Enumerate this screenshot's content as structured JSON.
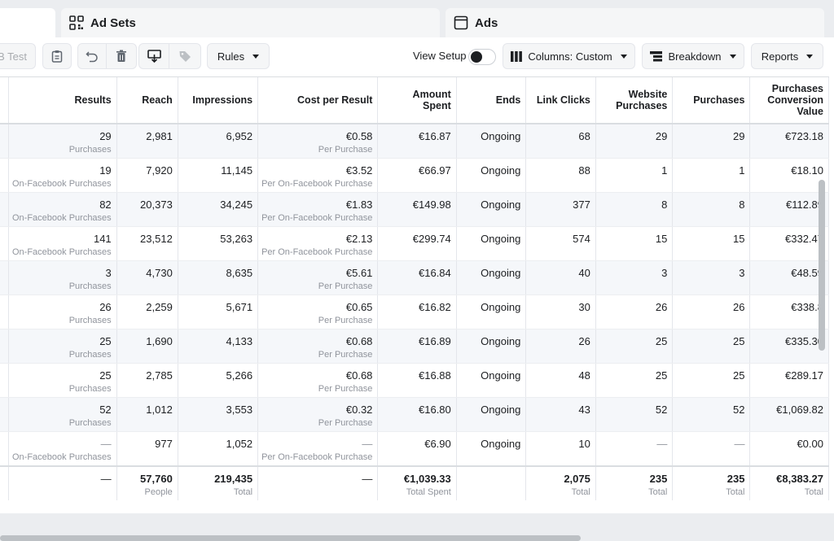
{
  "tabs": [
    {
      "label": "",
      "icon": "campaigns-tab",
      "active": true
    },
    {
      "label": "Ad Sets",
      "icon": "grid-icon",
      "active": false
    },
    {
      "label": "Ads",
      "icon": "window-icon",
      "active": false
    }
  ],
  "toolbar": {
    "ab_test_label": "B Test",
    "rules_label": "Rules",
    "view_setup_label": "View Setup",
    "columns_label": "Columns: Custom",
    "breakdown_label": "Breakdown",
    "reports_label": "Reports"
  },
  "table": {
    "headers": [
      "",
      "Results",
      "Reach",
      "Impressions",
      "Cost per Result",
      "Amount Spent",
      "Ends",
      "Link Clicks",
      "Website Purchases",
      "Purchases",
      "Purchases Conversion Value"
    ],
    "rows": [
      {
        "results": "29",
        "results_sub": "Purchases",
        "reach": "2,981",
        "impressions": "6,952",
        "cpr": "€0.58",
        "cpr_sub": "Per Purchase",
        "spent": "€16.87",
        "ends": "Ongoing",
        "clicks": "68",
        "web_purchases": "29",
        "purchases": "29",
        "conv_value": "€723.18"
      },
      {
        "results": "19",
        "results_sub": "On-Facebook Purchases",
        "reach": "7,920",
        "impressions": "11,145",
        "cpr": "€3.52",
        "cpr_sub": "Per On-Facebook Purchase",
        "spent": "€66.97",
        "ends": "Ongoing",
        "clicks": "88",
        "web_purchases": "1",
        "purchases": "1",
        "conv_value": "€18.10"
      },
      {
        "results": "82",
        "results_sub": "On-Facebook Purchases",
        "reach": "20,373",
        "impressions": "34,245",
        "cpr": "€1.83",
        "cpr_sub": "Per On-Facebook Purchase",
        "spent": "€149.98",
        "ends": "Ongoing",
        "clicks": "377",
        "web_purchases": "8",
        "purchases": "8",
        "conv_value": "€112.89"
      },
      {
        "results": "141",
        "results_sub": "On-Facebook Purchases",
        "reach": "23,512",
        "impressions": "53,263",
        "cpr": "€2.13",
        "cpr_sub": "Per On-Facebook Purchase",
        "spent": "€299.74",
        "ends": "Ongoing",
        "clicks": "574",
        "web_purchases": "15",
        "purchases": "15",
        "conv_value": "€332.47"
      },
      {
        "results": "3",
        "results_sub": "Purchases",
        "reach": "4,730",
        "impressions": "8,635",
        "cpr": "€5.61",
        "cpr_sub": "Per Purchase",
        "spent": "€16.84",
        "ends": "Ongoing",
        "clicks": "40",
        "web_purchases": "3",
        "purchases": "3",
        "conv_value": "€48.59"
      },
      {
        "results": "26",
        "results_sub": "Purchases",
        "reach": "2,259",
        "impressions": "5,671",
        "cpr": "€0.65",
        "cpr_sub": "Per Purchase",
        "spent": "€16.82",
        "ends": "Ongoing",
        "clicks": "30",
        "web_purchases": "26",
        "purchases": "26",
        "conv_value": "€338.8"
      },
      {
        "results": "25",
        "results_sub": "Purchases",
        "reach": "1,690",
        "impressions": "4,133",
        "cpr": "€0.68",
        "cpr_sub": "Per Purchase",
        "spent": "€16.89",
        "ends": "Ongoing",
        "clicks": "26",
        "web_purchases": "25",
        "purchases": "25",
        "conv_value": "€335.30"
      },
      {
        "results": "25",
        "results_sub": "Purchases",
        "reach": "2,785",
        "impressions": "5,266",
        "cpr": "€0.68",
        "cpr_sub": "Per Purchase",
        "spent": "€16.88",
        "ends": "Ongoing",
        "clicks": "48",
        "web_purchases": "25",
        "purchases": "25",
        "conv_value": "€289.17"
      },
      {
        "results": "52",
        "results_sub": "Purchases",
        "reach": "1,012",
        "impressions": "3,553",
        "cpr": "€0.32",
        "cpr_sub": "Per Purchase",
        "spent": "€16.80",
        "ends": "Ongoing",
        "clicks": "43",
        "web_purchases": "52",
        "purchases": "52",
        "conv_value": "€1,069.82"
      },
      {
        "results": "—",
        "results_sub": "On-Facebook Purchases",
        "reach": "977",
        "impressions": "1,052",
        "cpr": "—",
        "cpr_sub": "Per On-Facebook Purchase",
        "spent": "€6.90",
        "ends": "Ongoing",
        "clicks": "10",
        "web_purchases": "—",
        "purchases": "—",
        "conv_value": "€0.00"
      }
    ],
    "totals": {
      "results": "—",
      "reach": "57,760",
      "reach_sub": "People",
      "impressions": "219,435",
      "impressions_sub": "Total",
      "cpr": "—",
      "spent": "€1,039.33",
      "spent_sub": "Total Spent",
      "clicks": "2,075",
      "clicks_sub": "Total",
      "web_purchases": "235",
      "web_purchases_sub": "Total",
      "purchases": "235",
      "purchases_sub": "Total",
      "conv_value": "€8,383.27",
      "conv_value_sub": "Total"
    }
  }
}
